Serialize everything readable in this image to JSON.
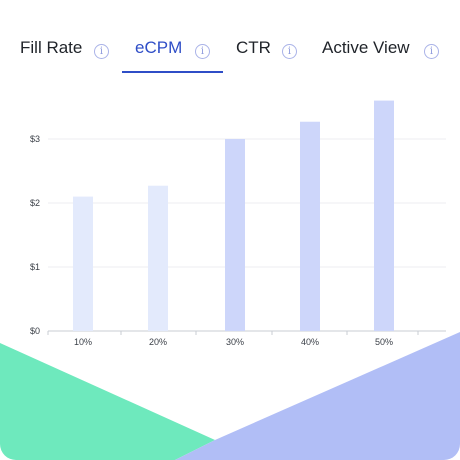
{
  "tabs": [
    {
      "label": "Fill Rate",
      "icon": "info-icon",
      "active": false
    },
    {
      "label": "eCPM",
      "icon": "info-icon",
      "active": true
    },
    {
      "label": "CTR",
      "icon": "info-icon",
      "active": false
    },
    {
      "label": "Active View",
      "icon": "info-icon",
      "active": false
    }
  ],
  "colors": {
    "accent": "#2f4ec7",
    "bar_light": "#e3eafc",
    "bar_dark": "#cdd6fa",
    "deco_green": "#6ee9bd",
    "deco_blue": "#b1bef6"
  },
  "chart_data": {
    "type": "bar",
    "categories": [
      "10%",
      "20%",
      "30%",
      "40%",
      "50%"
    ],
    "values": [
      2.1,
      2.27,
      3.0,
      3.27,
      3.6
    ],
    "ytick_labels": [
      "$0",
      "$1",
      "$2",
      "$3"
    ],
    "yticks": [
      0,
      1,
      2,
      3
    ],
    "ylim": [
      0,
      3.6
    ],
    "grid": true,
    "xlabel": "",
    "ylabel": "",
    "title": ""
  }
}
